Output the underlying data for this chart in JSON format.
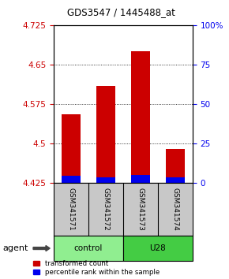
{
  "title": "GDS3547 / 1445488_at",
  "samples": [
    "GSM341571",
    "GSM341572",
    "GSM341573",
    "GSM341574"
  ],
  "groups": [
    "control",
    "control",
    "U28",
    "U28"
  ],
  "group_labels": [
    "control",
    "U28"
  ],
  "bar_base": 4.425,
  "red_tops": [
    4.555,
    4.61,
    4.675,
    4.49
  ],
  "blue_tops": [
    4.438,
    4.436,
    4.44,
    4.435
  ],
  "red_color": "#CC0000",
  "blue_color": "#0000EE",
  "ylim_left": [
    4.425,
    4.725
  ],
  "yticks_left": [
    4.425,
    4.5,
    4.575,
    4.65,
    4.725
  ],
  "yticks_right": [
    0,
    25,
    50,
    75,
    100
  ],
  "ylabel_left_color": "#CC0000",
  "ylabel_right_color": "#0000EE",
  "grid_style": "dotted",
  "legend_red": "transformed count",
  "legend_blue": "percentile rank within the sample",
  "agent_label": "agent",
  "ctrl_color": "#90EE90",
  "u28_color": "#44CC44",
  "sample_bg": "#C8C8C8",
  "bar_width": 0.55
}
